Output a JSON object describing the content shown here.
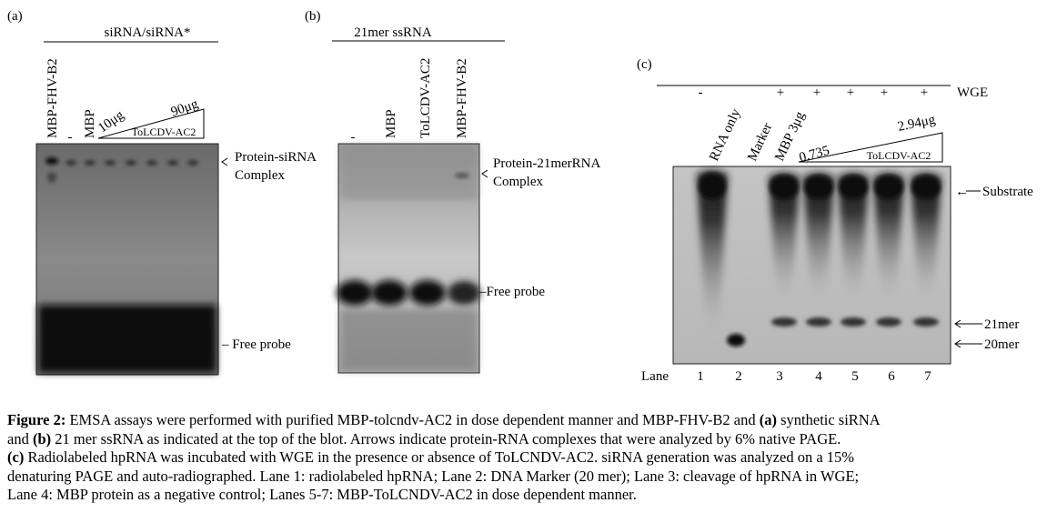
{
  "panel_a": {
    "label": "(a)",
    "header": "siRNA/siRNA*",
    "lanes": [
      "MBP-FHV-B2",
      "-",
      "MBP"
    ],
    "dose_low": "10μg",
    "dose_high": "90μg",
    "dose_name": "ToLCDV-AC2",
    "annotations": [
      "Protein-siRNA",
      "Complex",
      "– Free probe"
    ]
  },
  "panel_b": {
    "label": "(b)",
    "header": "21mer ssRNA",
    "lanes": [
      "-",
      "MBP",
      "ToLCDV-AC2",
      "MBP-FHV-B2"
    ],
    "annotations": [
      "Protein-21merRNA",
      "Complex",
      "–Free probe"
    ]
  },
  "panel_c": {
    "label": "(c)",
    "wge_signs": [
      "-",
      "+",
      "+",
      "+",
      "+",
      "+"
    ],
    "wge_label": "WGE",
    "lanes": [
      "RNA only",
      "Marker",
      "MBP 3μg"
    ],
    "dose_low": "0.735",
    "dose_high": "2.94μg",
    "dose_name": "ToLCDV-AC2",
    "annotations": [
      "Substrate",
      "21mer",
      "20mer"
    ],
    "lane_title": "Lane",
    "lane_numbers": [
      "1",
      "2",
      "3",
      "4",
      "5",
      "6",
      "7"
    ]
  },
  "caption": {
    "lines": [
      [
        "Figure 2:",
        " EMSA assays were performed with purified MBP-tolcndv-AC2 in dose dependent manner and MBP-FHV-B2 and ",
        "(a)",
        " synthetic siRNA"
      ],
      [
        "and ",
        "(b)",
        " 21 mer ssRNA as indicated at the top of the blot. Arrows indicate protein-RNA complexes that were analyzed by 6% native PAGE."
      ],
      [
        "(c)",
        " Radiolabeled hpRNA was incubated with WGE in the presence or absence of ToLCNDV-AC2. siRNA generation was analyzed on a 15%"
      ],
      [
        "denaturing PAGE and auto-radiographed. Lane 1: radiolabeled hpRNA; Lane 2: DNA Marker (20 mer); Lane 3: cleavage of hpRNA in WGE;"
      ],
      [
        "Lane 4: MBP protein as a negative control; Lanes 5-7: MBP-ToLCNDV-AC2 in dose dependent manner."
      ]
    ]
  }
}
